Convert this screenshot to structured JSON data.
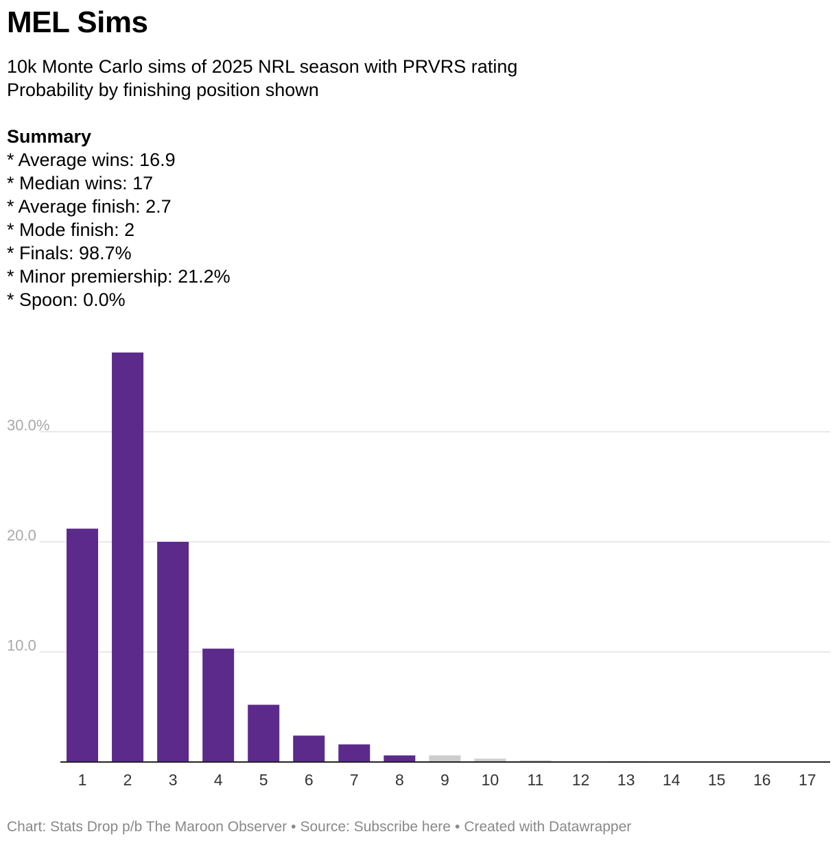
{
  "header": {
    "title": "MEL Sims",
    "description": [
      "10k Monte Carlo sims of 2025 NRL season with PRVRS rating",
      "Probability by finishing position shown"
    ]
  },
  "summary": {
    "heading": "Summary",
    "items": [
      "* Average wins: 16.9",
      "* Median wins: 17",
      "* Average finish: 2.7",
      "* Mode finish: 2",
      "* Finals: 98.7%",
      "* Minor premiership: 21.2%",
      "* Spoon: 0.0%"
    ]
  },
  "chart_data": {
    "type": "bar",
    "categories": [
      "1",
      "2",
      "3",
      "4",
      "5",
      "6",
      "7",
      "8",
      "9",
      "10",
      "11",
      "12",
      "13",
      "14",
      "15",
      "16",
      "17"
    ],
    "values": [
      21.2,
      37.2,
      20.0,
      10.3,
      5.2,
      2.4,
      1.6,
      0.6,
      0.6,
      0.3,
      0.15,
      0.02,
      0.08,
      0.0,
      0.0,
      0.0,
      0.0
    ],
    "bar_colors": [
      "#5b2a8b",
      "#5b2a8b",
      "#5b2a8b",
      "#5b2a8b",
      "#5b2a8b",
      "#5b2a8b",
      "#5b2a8b",
      "#5b2a8b",
      "#cccccc",
      "#cccccc",
      "#cccccc",
      "#cccccc",
      "#cccccc",
      "#cccccc",
      "#cccccc",
      "#cccccc",
      "#cccccc"
    ],
    "y_ticks": [
      {
        "value": 10,
        "label": "10.0"
      },
      {
        "value": 20,
        "label": "20.0"
      },
      {
        "value": 30,
        "label": "30.0%"
      }
    ],
    "ylim": [
      0,
      40
    ],
    "grid": true,
    "colors": {
      "finals": "#5b2a8b",
      "non_finals": "#cccccc",
      "grid": "#e0e0e0",
      "tick": "#a8a8a8"
    }
  },
  "footer": {
    "chart_credit": "Chart: Stats Drop p/b The Maroon Observer",
    "source": "Source: Subscribe here",
    "created": "Created with Datawrapper",
    "separator": "•"
  }
}
